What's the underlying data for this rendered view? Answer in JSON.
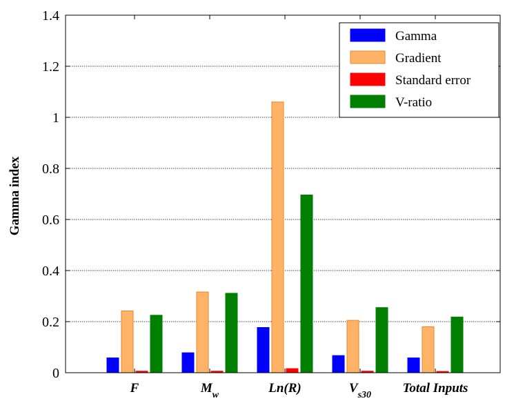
{
  "chart_data": {
    "type": "bar",
    "title": "",
    "xlabel": "",
    "ylabel": "Gamma index",
    "ylim": [
      0,
      1.4
    ],
    "yticks": [
      "0",
      "0.2",
      "0.4",
      "0.6",
      "0.8",
      "1",
      "1.2",
      "1.4"
    ],
    "grid": "horizontal dotted",
    "legend_position": "top-right",
    "categories": [
      {
        "main": "F",
        "sub": ""
      },
      {
        "main": "M",
        "sub": "w"
      },
      {
        "main": "Ln(R)",
        "sub": ""
      },
      {
        "main": "V",
        "sub": "s30"
      },
      {
        "main": "Total Inputs",
        "sub": ""
      }
    ],
    "series": [
      {
        "name": "Gamma",
        "color": "#0000ff",
        "edge": "#0000ff",
        "values": [
          0.058,
          0.078,
          0.177,
          0.067,
          0.058
        ]
      },
      {
        "name": "Gradient",
        "color": "#ffb366",
        "edge": "#e8842a",
        "values": [
          0.242,
          0.316,
          1.06,
          0.205,
          0.18
        ]
      },
      {
        "name": "Standard error",
        "color": "#ff0000",
        "edge": "#ff0000",
        "values": [
          0.006,
          0.006,
          0.016,
          0.006,
          0.005
        ]
      },
      {
        "name": "V-ratio",
        "color": "#007f00",
        "edge": "#007f00",
        "values": [
          0.225,
          0.311,
          0.696,
          0.255,
          0.218
        ]
      }
    ]
  }
}
